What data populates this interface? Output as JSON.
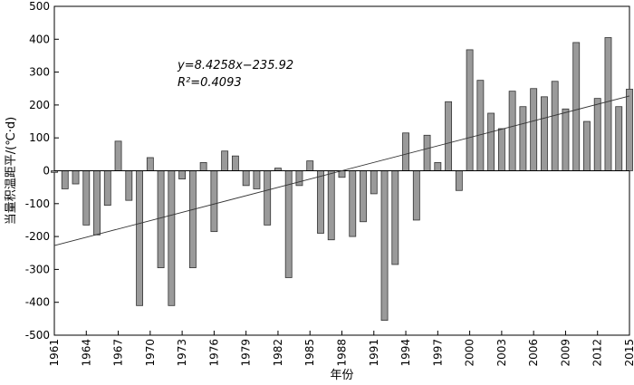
{
  "chart_data": {
    "type": "bar",
    "title": "",
    "xlabel": "年份",
    "ylabel": "当量积温距平/(℃·d)",
    "ylim": [
      -500,
      500
    ],
    "yticks": [
      -500,
      -400,
      -300,
      -200,
      -100,
      0,
      100,
      200,
      300,
      400,
      500
    ],
    "xlim": [
      1961,
      2015
    ],
    "xticks": [
      1961,
      1964,
      1967,
      1970,
      1973,
      1976,
      1979,
      1982,
      1985,
      1988,
      1991,
      1994,
      1997,
      2000,
      2003,
      2006,
      2009,
      2012,
      2015
    ],
    "categories": [
      1961,
      1962,
      1963,
      1964,
      1965,
      1966,
      1967,
      1968,
      1969,
      1970,
      1971,
      1972,
      1973,
      1974,
      1975,
      1976,
      1977,
      1978,
      1979,
      1980,
      1981,
      1982,
      1983,
      1984,
      1985,
      1986,
      1987,
      1988,
      1989,
      1990,
      1991,
      1992,
      1993,
      1994,
      1995,
      1996,
      1997,
      1998,
      1999,
      2000,
      2001,
      2002,
      2003,
      2004,
      2005,
      2006,
      2007,
      2008,
      2009,
      2010,
      2011,
      2012,
      2013,
      2014,
      2015
    ],
    "values": [
      -5,
      -55,
      -40,
      -165,
      -195,
      -105,
      90,
      -90,
      -410,
      40,
      -295,
      -410,
      -25,
      -295,
      25,
      -185,
      60,
      45,
      -45,
      -55,
      -165,
      8,
      -325,
      -45,
      30,
      -190,
      -210,
      -20,
      -200,
      -155,
      -70,
      -455,
      -285,
      115,
      -150,
      108,
      25,
      210,
      -60,
      368,
      275,
      175,
      128,
      242,
      195,
      250,
      225,
      272,
      188,
      390,
      150,
      220,
      405,
      195,
      248
    ],
    "trendline": {
      "slope": 8.4258,
      "intercept": -235.92,
      "x_origin": 1961
    },
    "annotations": [
      {
        "text": "y=8.4258x−235.92"
      },
      {
        "text": "R²=0.4093"
      }
    ]
  }
}
